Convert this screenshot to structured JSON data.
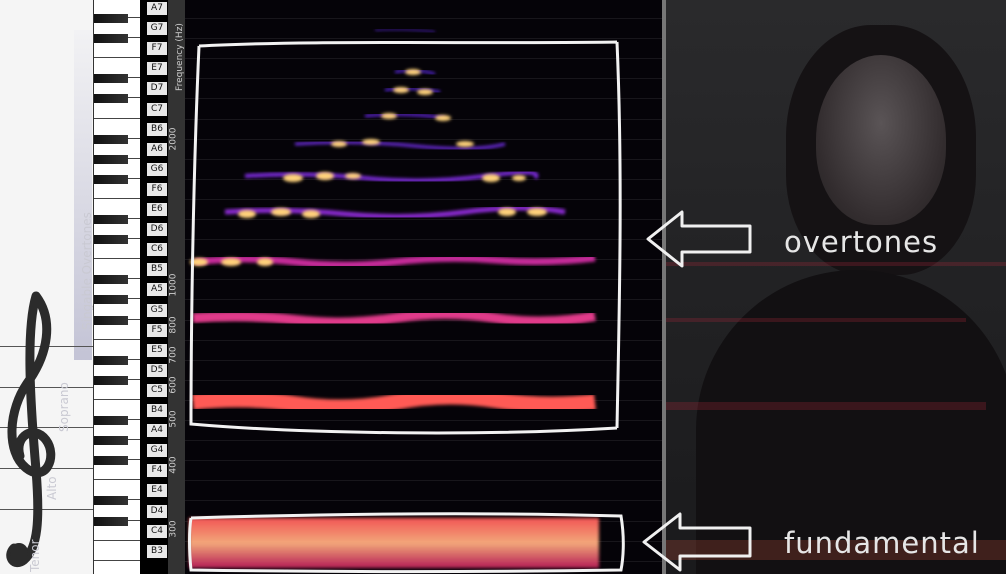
{
  "notes": [
    "A7",
    "G7",
    "F7",
    "E7",
    "D7",
    "C7",
    "B6",
    "A6",
    "G6",
    "F6",
    "E6",
    "D6",
    "C6",
    "B5",
    "A5",
    "G5",
    "F5",
    "E5",
    "D5",
    "C5",
    "B4",
    "A4",
    "G4",
    "F4",
    "E4",
    "D4",
    "C4",
    "B3"
  ],
  "axis": {
    "title": "Frequency (Hz)",
    "ticks": [
      "2000",
      "1000",
      "800",
      "700",
      "600",
      "500",
      "400",
      "300"
    ]
  },
  "voices": {
    "overtone_band": "Singable Overtones",
    "soprano": "Soprano",
    "alto": "Alto",
    "tenor": "Tenor"
  },
  "captions": {
    "overtones": "overtones",
    "fundamental": "fundamental"
  },
  "colors": {
    "spectrogram_background": "#050308",
    "hot": "#ffd27a",
    "mid": "#ff4d5a",
    "cool": "#6b2bd6",
    "annotation": "#f2f2f2"
  }
}
